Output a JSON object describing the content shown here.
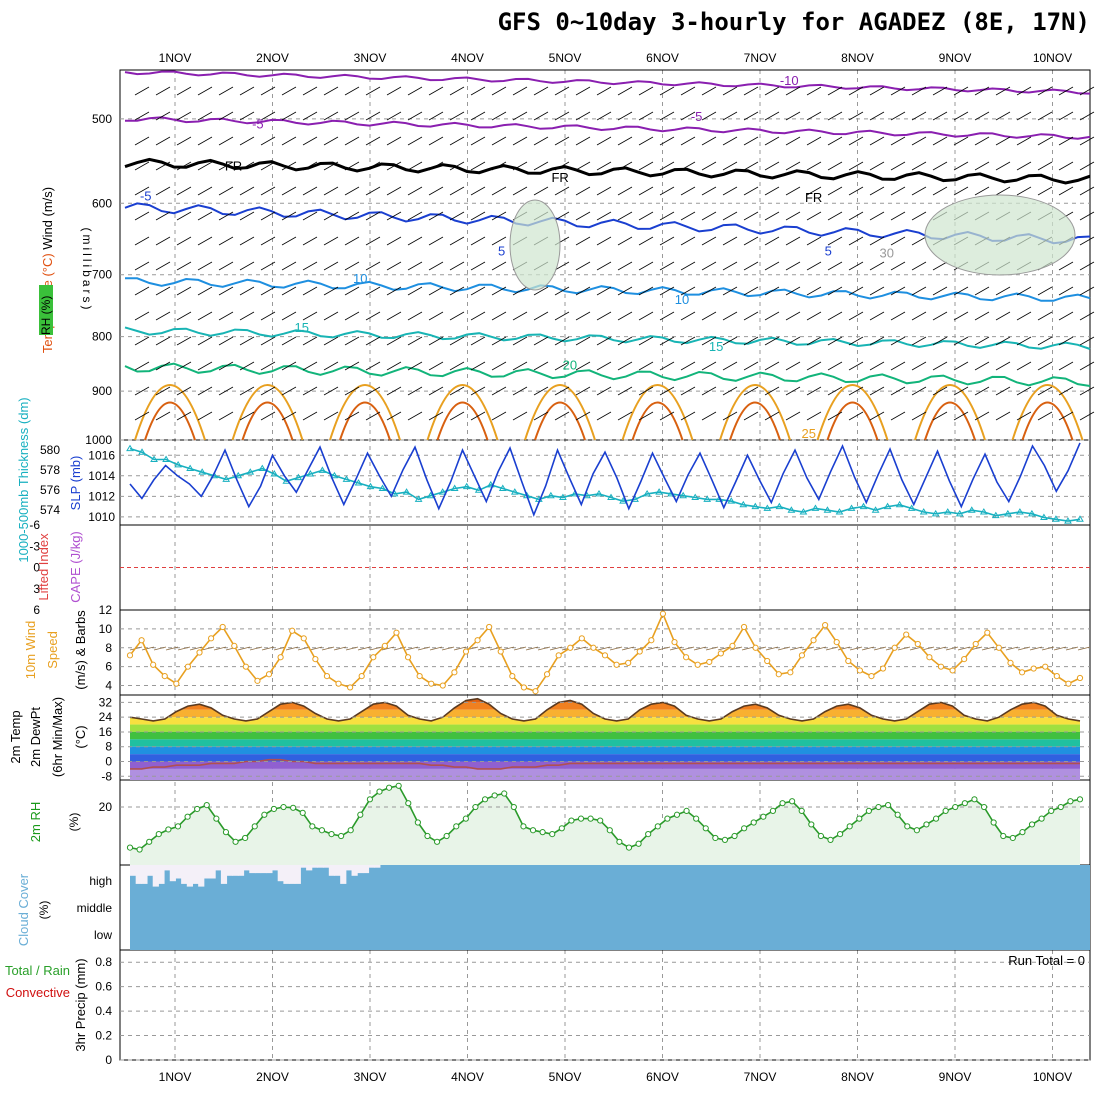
{
  "title": "GFS 0~10day 3-hourly for AGADEZ (8E, 17N)",
  "dates": [
    "1NOV",
    "2NOV",
    "3NOV",
    "4NOV",
    "5NOV",
    "6NOV",
    "7NOV",
    "8NOV",
    "9NOV",
    "10NOV"
  ],
  "colors": {
    "purple": "#8a1fb0",
    "black": "#000000",
    "blue": "#1a3fd0",
    "lightblue": "#1e8fe0",
    "cyan": "#18b4b4",
    "green": "#12b47a",
    "orange": "#e8a020",
    "darkorange": "#d86010",
    "grid": "#999999",
    "cloud": "#6aaed6",
    "rh_fill": "#e8f4e8",
    "rh_line": "#2a9a2a",
    "rh_text": "#1a9a1a",
    "precip_text": "#d01010",
    "cape_text": "#b050d0",
    "slp_blue": "#1a3fd0",
    "thick_cyan": "#18b0c0"
  },
  "chart_data": [
    {
      "panel": "upper-air",
      "type": "line",
      "ylabel_parts": [
        "Wind (m/s)",
        "Temperature (°C)"
      ],
      "ylabel_rh": "RH (%)",
      "ylabel_pressure": "(millibars)",
      "y_ticks": [
        500,
        600,
        700,
        800,
        900,
        1000
      ],
      "ylim": [
        1000,
        450
      ],
      "y_scale": "log",
      "isotherm_labels": [
        {
          "text": "-10",
          "day": 7.3,
          "p": 460,
          "color": "purple"
        },
        {
          "text": "-5",
          "day": 1.85,
          "p": 505,
          "color": "purple"
        },
        {
          "text": "-5",
          "day": 6.35,
          "p": 497,
          "color": "purple"
        },
        {
          "text": "FR",
          "day": 1.6,
          "p": 553,
          "color": "black"
        },
        {
          "text": "FR",
          "day": 4.95,
          "p": 567,
          "color": "black"
        },
        {
          "text": "FR",
          "day": 7.55,
          "p": 592,
          "color": "black"
        },
        {
          "text": "-5",
          "day": 0.7,
          "p": 590,
          "color": "blue"
        },
        {
          "text": "5",
          "day": 4.35,
          "p": 664,
          "color": "blue"
        },
        {
          "text": "5",
          "day": 7.7,
          "p": 664,
          "color": "blue"
        },
        {
          "text": "10",
          "day": 2.9,
          "p": 705,
          "color": "lightblue"
        },
        {
          "text": "10",
          "day": 6.2,
          "p": 738,
          "color": "lightblue"
        },
        {
          "text": "15",
          "day": 2.3,
          "p": 784,
          "color": "cyan"
        },
        {
          "text": "15",
          "day": 6.55,
          "p": 816,
          "color": "cyan"
        },
        {
          "text": "20",
          "day": 5.05,
          "p": 850,
          "color": "green"
        },
        {
          "text": "25",
          "day": 7.5,
          "p": 985,
          "color": "orange"
        },
        {
          "text": "30",
          "day": 8.3,
          "p": 667,
          "color": "grid"
        }
      ]
    },
    {
      "panel": "slp-thickness",
      "type": "line",
      "ylabel_left": "1000-500mb Thickness (dm)",
      "ylabel_right": "SLP (mb)",
      "left_ticks": [
        574,
        576,
        578,
        580
      ],
      "right_ticks": [
        1010,
        1012,
        1014,
        1016
      ],
      "ylim_right": [
        1009.5,
        1017
      ],
      "slp_series": {
        "name": "SLP (mb)",
        "values": [
          1013.2,
          1011.8,
          1013.6,
          1015,
          1014,
          1013.2,
          1012,
          1014,
          1016.5,
          1013.6,
          1011,
          1013,
          1016,
          1014,
          1012.4,
          1014.6,
          1016.8,
          1013.8,
          1011.2,
          1013.6,
          1016.2,
          1014,
          1012,
          1014.6,
          1016.8,
          1013.6,
          1010.8,
          1013.4,
          1016.5,
          1014,
          1011.5,
          1014.4,
          1016.7,
          1013.4,
          1010.2,
          1013,
          1016.5,
          1013.8,
          1011.2,
          1014.2,
          1016.3,
          1013.8,
          1010.8,
          1013.4,
          1016.2,
          1013.8,
          1011.5,
          1014.1,
          1016.2,
          1013.6,
          1010.9,
          1013.4,
          1016,
          1013.6,
          1011.4,
          1014.2,
          1016.5,
          1013.8,
          1011.7,
          1014.4,
          1016.9,
          1013.9,
          1011.4,
          1014.1,
          1016.6,
          1013.6,
          1011.2,
          1013.8,
          1016.4,
          1013.5,
          1011,
          1013.7,
          1016.1,
          1013.4,
          1011.5,
          1014,
          1016.9,
          1015,
          1012.5,
          1014.5,
          1017.2
        ]
      },
      "thickness_series": {
        "name": "1000-500mb Thickness (dm)",
        "values": [
          580.6,
          580.2,
          579.4,
          579.4,
          578.8,
          578.4,
          578,
          577.6,
          577.2,
          577.6,
          578,
          578.4,
          577.8,
          577,
          577.4,
          577.8,
          578.2,
          577.6,
          577.2,
          576.8,
          576.4,
          576.2,
          575.6,
          575.8,
          575,
          575.4,
          575.8,
          576.2,
          576.4,
          576,
          576.6,
          576.2,
          575.8,
          575.4,
          575,
          575.4,
          575.2,
          575.6,
          575.4,
          575.6,
          575.2,
          574.8,
          575,
          575.6,
          575.8,
          575.6,
          575.4,
          575.2,
          575,
          575,
          574.8,
          574.4,
          574.2,
          574,
          574.2,
          573.8,
          573.6,
          574,
          573.8,
          573.6,
          574,
          574.2,
          573.8,
          574.2,
          574.4,
          574,
          573.6,
          573.4,
          573.6,
          573.4,
          573.8,
          573.6,
          573.2,
          573.4,
          573.6,
          573.4,
          573,
          572.8,
          572.6,
          572.8
        ]
      }
    },
    {
      "panel": "lifted-index-cape",
      "type": "line",
      "ylabel_left": "Lifted Index",
      "ylabel_right": "CAPE (J/kg)",
      "y_ticks": [
        "-6",
        "-3",
        "0",
        "3",
        "6"
      ],
      "ylim": [
        -6,
        6
      ],
      "series": []
    },
    {
      "panel": "10m-wind",
      "type": "line",
      "ylabel_parts": [
        "10m Wind",
        "Speed",
        "(m/s) & Barbs"
      ],
      "y_ticks": [
        4,
        6,
        8,
        10,
        12
      ],
      "ylim": [
        3,
        12
      ],
      "series": [
        {
          "name": "10m Wind Speed",
          "values": [
            7.2,
            8.8,
            6.2,
            5,
            4.2,
            6,
            7.5,
            9,
            10.2,
            8.2,
            6,
            4.5,
            5.2,
            7,
            9.8,
            9,
            6.8,
            5,
            4.2,
            3.8,
            5,
            7,
            8.2,
            9.6,
            7,
            5,
            4.2,
            4,
            5.4,
            7.6,
            8.8,
            10.2,
            7.6,
            5,
            3.8,
            3.4,
            5.2,
            7.2,
            8,
            9,
            8,
            7.2,
            6.2,
            6.4,
            7.6,
            8.8,
            11.6,
            8.6,
            7,
            6.2,
            6.5,
            7.4,
            8.2,
            10.2,
            8,
            6.6,
            5.2,
            5.4,
            7.2,
            8.8,
            10.4,
            8.6,
            6.6,
            5.6,
            5,
            5.8,
            8,
            9.4,
            8.4,
            7,
            6,
            5.6,
            6.8,
            8.4,
            9.6,
            8,
            6.4,
            5.4,
            5.8,
            6,
            5,
            4.2,
            4.8
          ]
        }
      ]
    },
    {
      "panel": "2m-temp",
      "type": "area",
      "ylabel_parts": [
        "2m Temp",
        "2m DewPt",
        "(6hr Min/Max)",
        "(°C)"
      ],
      "y_ticks": [
        -8,
        0,
        8,
        16,
        24,
        32
      ],
      "ylim": [
        -10,
        36
      ],
      "temp_series": {
        "name": "2m Temp",
        "values": [
          24,
          23,
          22,
          23,
          27,
          30,
          31,
          29,
          25,
          23,
          22,
          23,
          27,
          31,
          32,
          30,
          26,
          23,
          22,
          23,
          27,
          31,
          32,
          30,
          25,
          23,
          22,
          24,
          29,
          33,
          34,
          31,
          26,
          23,
          22,
          23,
          28,
          32,
          33,
          31,
          26,
          23,
          22,
          23,
          28,
          31,
          32,
          30,
          25,
          23,
          22,
          23,
          27,
          30,
          31,
          29,
          25,
          23,
          22,
          23,
          27,
          30,
          31,
          29,
          25,
          23,
          22,
          23,
          27,
          31,
          32,
          30,
          25,
          23,
          22,
          24,
          28,
          31,
          32,
          30,
          25,
          23,
          22
        ]
      },
      "dewpt_series": {
        "name": "2m DewPt",
        "values": [
          -4,
          -4,
          -3,
          -3,
          -2,
          -2,
          -2,
          -1,
          -1,
          -1,
          0,
          0,
          1,
          1,
          0,
          0,
          -1,
          -1,
          -1,
          -1,
          -1,
          -1,
          -1,
          -1,
          -1,
          -1,
          -2,
          -2,
          -3,
          -3,
          -4,
          -4,
          -4,
          -3,
          -3,
          -3,
          -2,
          -2,
          -1,
          -1,
          -1,
          -1,
          -1,
          -1,
          -1,
          -1,
          -1,
          -1,
          -1,
          -1,
          -1,
          -1,
          -1,
          -1,
          -1,
          -1,
          -1,
          -1,
          -1,
          -1,
          -1,
          -1,
          -1,
          -1,
          -1,
          -1,
          -1,
          -1,
          -1,
          -1,
          -1,
          -1,
          -1,
          -1,
          -1,
          -1,
          -1,
          -1,
          -1,
          -1,
          -1,
          -1,
          -1
        ]
      }
    },
    {
      "panel": "2m-rh",
      "type": "area",
      "ylabel": "2m RH",
      "yunit": "(%)",
      "y_ticks": [
        20
      ],
      "ylim": [
        5,
        27
      ],
      "series": [
        {
          "name": "2m RH",
          "values": [
            9.5,
            9,
            11,
            13,
            14.2,
            15,
            17.5,
            19.5,
            20.5,
            17,
            13.5,
            11,
            12,
            15,
            18,
            19.5,
            20,
            19.8,
            18.5,
            15,
            14,
            13,
            12.5,
            14,
            18,
            22,
            24,
            25,
            25.5,
            21,
            16,
            12.5,
            11,
            12.5,
            15,
            17,
            20,
            22,
            23,
            23.5,
            20,
            15,
            14,
            13.5,
            13,
            14.5,
            16.5,
            17,
            17,
            16.5,
            14,
            11,
            9.5,
            10.5,
            13,
            15,
            17,
            18,
            19,
            17,
            14.5,
            12,
            11.5,
            12.5,
            14.5,
            16,
            17.5,
            19,
            21,
            21.5,
            19,
            15.5,
            12.5,
            11.5,
            13,
            15,
            17,
            19,
            20,
            20.5,
            18,
            15,
            14,
            15.5,
            17,
            19,
            20,
            21,
            22,
            20,
            16,
            12.5,
            12,
            13.5,
            15.5,
            17,
            19,
            20,
            21.5,
            22
          ]
        }
      ]
    },
    {
      "panel": "cloud-cover",
      "type": "bar",
      "ylabel": "Cloud Cover",
      "yunit": "(%)",
      "y_levels": [
        "high",
        "middle",
        "low"
      ],
      "high_cover_pct": [
        60,
        30,
        30,
        60,
        20,
        30,
        80,
        40,
        50,
        30,
        20,
        30,
        20,
        50,
        50,
        80,
        30,
        60,
        60,
        60,
        80,
        70,
        70,
        70,
        70,
        80,
        40,
        30,
        30,
        30,
        90,
        80,
        90,
        90,
        90,
        60,
        60,
        30,
        80,
        60,
        70,
        70,
        90,
        90,
        100,
        100,
        100,
        100,
        100,
        100,
        100,
        100,
        100,
        100,
        100,
        100,
        100,
        100,
        100,
        100,
        100,
        100,
        100,
        100,
        100,
        100,
        100,
        100,
        100,
        100,
        100,
        100,
        100,
        100,
        100,
        100,
        100,
        100,
        100,
        100,
        100,
        100,
        100,
        100,
        100,
        100,
        100,
        100,
        100,
        100,
        100,
        100,
        100,
        100,
        100,
        100,
        100,
        100,
        100,
        100,
        100,
        100,
        100,
        100,
        100,
        100,
        100,
        100,
        100,
        100,
        100,
        100,
        100,
        100,
        100,
        100,
        100,
        100,
        100,
        100,
        100,
        100,
        100,
        100,
        100,
        100,
        100,
        100,
        100,
        100,
        100,
        100,
        100,
        100,
        100,
        100,
        100,
        100,
        100,
        100,
        100,
        100,
        100,
        100,
        100,
        100,
        100,
        100,
        100,
        100,
        100,
        100,
        100,
        100,
        100,
        100,
        100,
        100,
        100,
        100,
        100,
        100,
        100,
        100,
        100,
        100,
        100,
        100,
        100
      ]
    },
    {
      "panel": "precip",
      "type": "bar",
      "ylabel_parts": [
        "Total / Rain",
        "Convective",
        "3hr Precip (mm)"
      ],
      "y_ticks": [
        "0",
        "0.2",
        "0.4",
        "0.6",
        "0.8"
      ],
      "ylim": [
        0,
        0.9
      ],
      "run_total": "Run Total = 0",
      "series": []
    }
  ]
}
